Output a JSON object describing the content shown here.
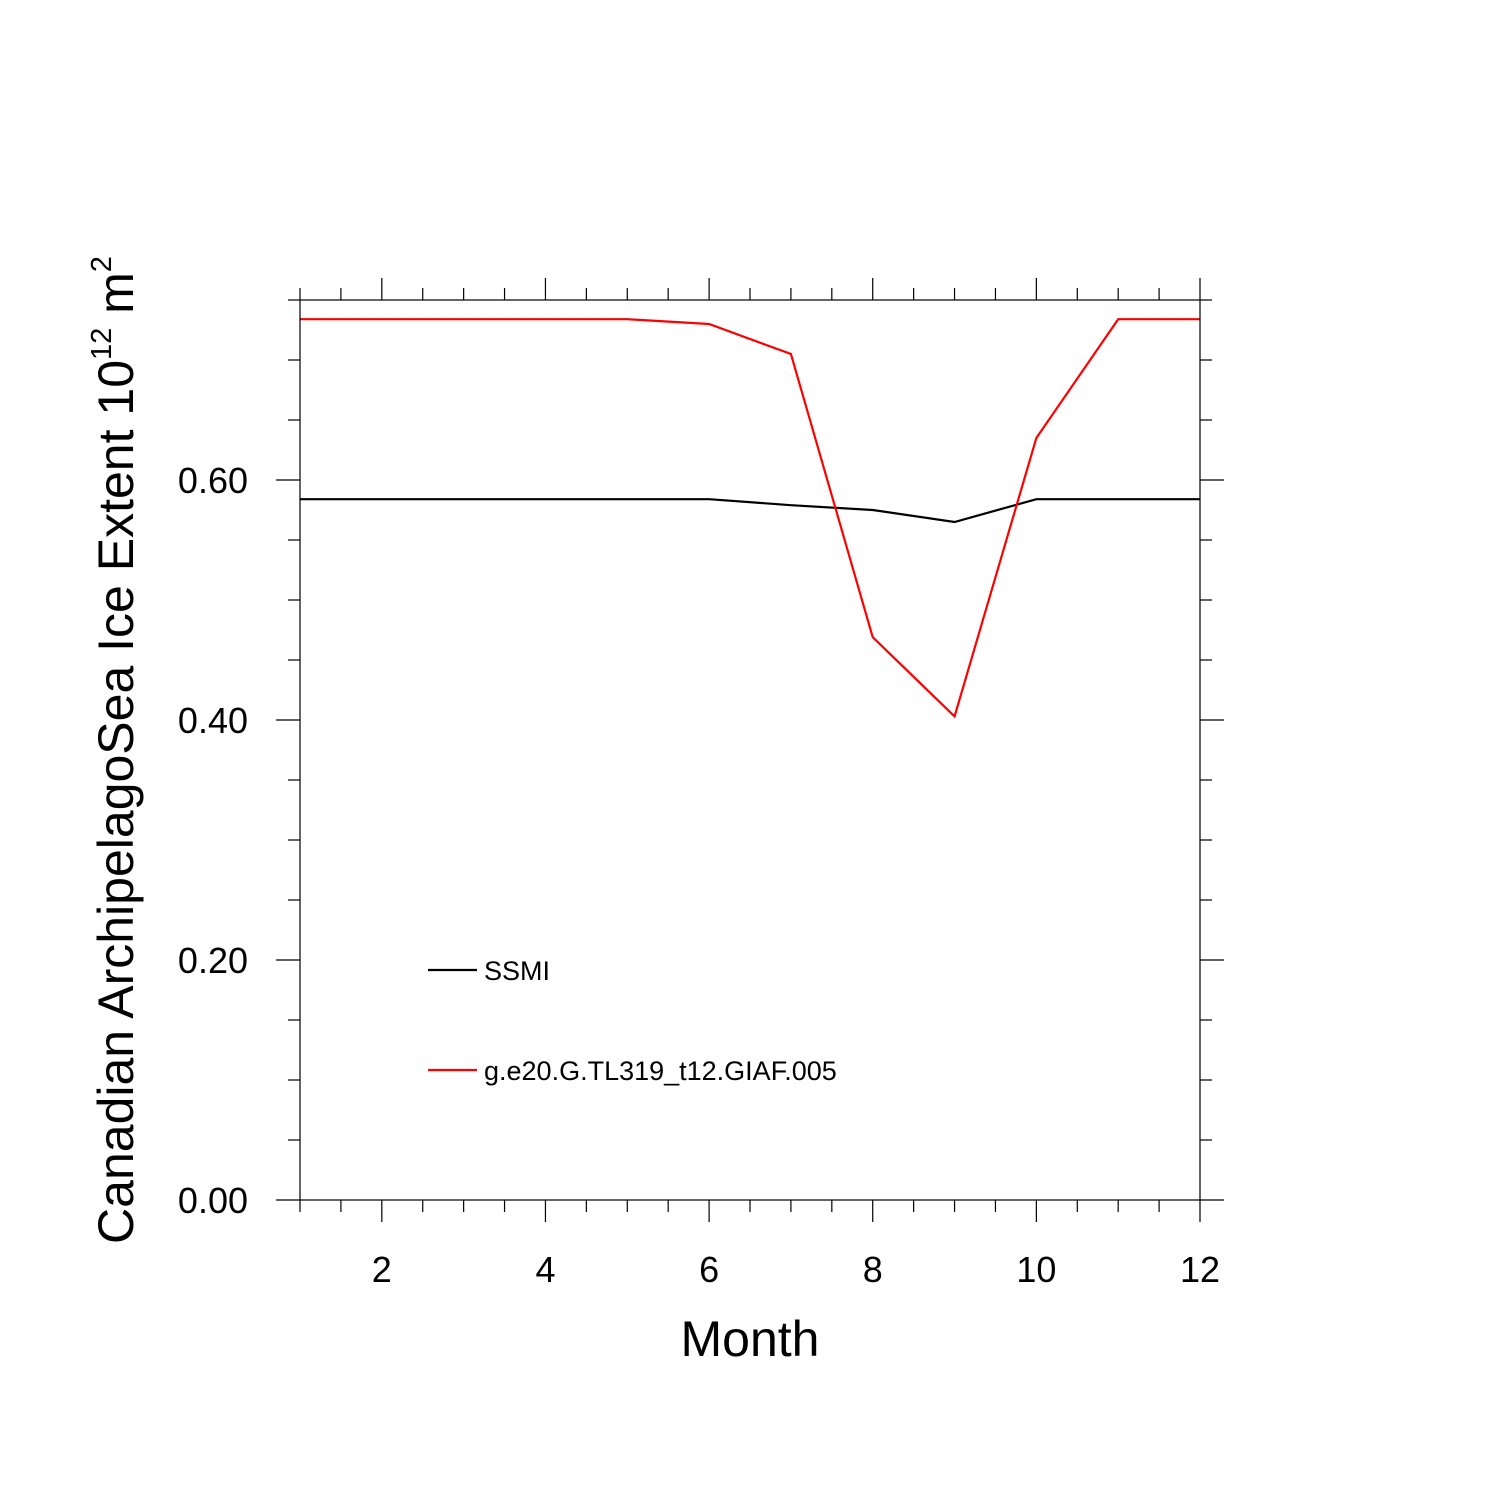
{
  "chart_data": {
    "type": "line",
    "title": "",
    "xlabel": "Month",
    "ylabel_parts": {
      "text": "Canadian ArchipelagoSea Ice Extent 10",
      "exp1": "12",
      "unit": " m",
      "exp2": "2"
    },
    "xlim": [
      1,
      12
    ],
    "ylim": [
      0,
      0.75
    ],
    "x_ticks": [
      2,
      4,
      6,
      8,
      10,
      12
    ],
    "x_tick_labels": [
      "2",
      "4",
      "6",
      "8",
      "10",
      "12"
    ],
    "y_ticks": [
      0,
      0.2,
      0.4,
      0.6
    ],
    "y_tick_labels": [
      "0.00",
      "0.20",
      "0.40",
      "0.60"
    ],
    "grid": false,
    "legend_position": "lower-left",
    "x": [
      1,
      2,
      3,
      4,
      5,
      6,
      7,
      8,
      9,
      10,
      11,
      12
    ],
    "series": [
      {
        "name": "SSMI",
        "color": "#000000",
        "values": [
          0.584,
          0.584,
          0.584,
          0.584,
          0.584,
          0.584,
          0.579,
          0.575,
          0.565,
          0.584,
          0.584,
          0.584
        ]
      },
      {
        "name": "g.e20.G.TL319_t12.GIAF.005",
        "color": "#ff0000",
        "values": [
          0.734,
          0.734,
          0.734,
          0.734,
          0.734,
          0.73,
          0.705,
          0.469,
          0.403,
          0.635,
          0.734,
          0.734
        ]
      }
    ]
  }
}
